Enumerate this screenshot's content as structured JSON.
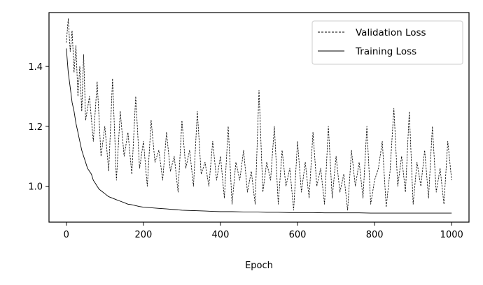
{
  "chart_data": {
    "type": "line",
    "title": "",
    "xlabel": "Epoch",
    "ylabel": "",
    "xlim": [
      -45,
      1045
    ],
    "ylim": [
      0.88,
      1.58
    ],
    "xticks": [
      0,
      200,
      400,
      600,
      800,
      1000
    ],
    "yticks": [
      1.0,
      1.2,
      1.4
    ],
    "xtick_labels": [
      "0",
      "200",
      "400",
      "600",
      "800",
      "1000"
    ],
    "ytick_labels": [
      "1.0",
      "1.2",
      "1.4"
    ],
    "grid": false,
    "legend_position": "top-right",
    "series": [
      {
        "name": "Validation Loss",
        "style": "dashed",
        "color": "#000000",
        "x": [
          0,
          5,
          10,
          15,
          20,
          25,
          30,
          35,
          40,
          45,
          50,
          60,
          70,
          80,
          90,
          100,
          110,
          120,
          130,
          140,
          150,
          160,
          170,
          180,
          190,
          200,
          210,
          220,
          230,
          240,
          250,
          260,
          270,
          280,
          290,
          300,
          310,
          320,
          330,
          340,
          350,
          360,
          370,
          380,
          390,
          400,
          410,
          420,
          430,
          440,
          450,
          460,
          470,
          480,
          490,
          500,
          510,
          520,
          530,
          540,
          550,
          560,
          570,
          580,
          590,
          600,
          610,
          620,
          630,
          640,
          650,
          660,
          670,
          680,
          690,
          700,
          710,
          720,
          730,
          740,
          750,
          760,
          770,
          780,
          790,
          800,
          810,
          820,
          830,
          840,
          850,
          860,
          870,
          880,
          890,
          900,
          910,
          920,
          930,
          940,
          950,
          960,
          970,
          980,
          990,
          1000
        ],
        "y": [
          1.48,
          1.56,
          1.45,
          1.52,
          1.38,
          1.47,
          1.3,
          1.4,
          1.25,
          1.44,
          1.22,
          1.3,
          1.15,
          1.35,
          1.1,
          1.2,
          1.05,
          1.36,
          1.02,
          1.25,
          1.1,
          1.18,
          1.04,
          1.3,
          1.06,
          1.15,
          1.0,
          1.22,
          1.08,
          1.12,
          1.02,
          1.18,
          1.05,
          1.1,
          0.98,
          1.22,
          1.06,
          1.12,
          1.0,
          1.25,
          1.04,
          1.08,
          1.0,
          1.15,
          1.02,
          1.1,
          0.96,
          1.2,
          0.94,
          1.08,
          1.02,
          1.12,
          0.98,
          1.05,
          0.94,
          1.32,
          0.98,
          1.08,
          1.02,
          1.2,
          0.94,
          1.12,
          1.0,
          1.06,
          0.92,
          1.15,
          0.98,
          1.08,
          0.96,
          1.18,
          1.0,
          1.06,
          0.94,
          1.2,
          0.96,
          1.1,
          0.98,
          1.04,
          0.92,
          1.12,
          1.0,
          1.08,
          0.96,
          1.2,
          0.94,
          1.02,
          1.06,
          1.15,
          0.93,
          1.05,
          1.26,
          1.0,
          1.1,
          0.98,
          1.25,
          0.94,
          1.08,
          1.0,
          1.12,
          0.96,
          1.2,
          0.98,
          1.06,
          0.94,
          1.15,
          1.02
        ]
      },
      {
        "name": "Training Loss",
        "style": "solid",
        "color": "#000000",
        "x": [
          0,
          5,
          10,
          15,
          20,
          25,
          30,
          35,
          40,
          45,
          50,
          55,
          60,
          65,
          70,
          75,
          80,
          85,
          90,
          95,
          100,
          110,
          120,
          130,
          140,
          150,
          160,
          170,
          180,
          190,
          200,
          220,
          240,
          260,
          280,
          300,
          320,
          340,
          360,
          380,
          400,
          430,
          460,
          490,
          520,
          550,
          580,
          610,
          640,
          670,
          700,
          730,
          760,
          790,
          820,
          850,
          880,
          910,
          940,
          970,
          1000
        ],
        "y": [
          1.46,
          1.38,
          1.33,
          1.28,
          1.25,
          1.21,
          1.18,
          1.15,
          1.12,
          1.1,
          1.08,
          1.06,
          1.05,
          1.04,
          1.02,
          1.01,
          1.0,
          0.99,
          0.985,
          0.98,
          0.975,
          0.965,
          0.96,
          0.955,
          0.95,
          0.945,
          0.94,
          0.938,
          0.935,
          0.932,
          0.93,
          0.928,
          0.926,
          0.924,
          0.922,
          0.92,
          0.919,
          0.918,
          0.917,
          0.916,
          0.915,
          0.915,
          0.914,
          0.914,
          0.913,
          0.913,
          0.912,
          0.912,
          0.912,
          0.911,
          0.911,
          0.911,
          0.911,
          0.91,
          0.91,
          0.91,
          0.91,
          0.91,
          0.91,
          0.91,
          0.91
        ]
      }
    ]
  }
}
